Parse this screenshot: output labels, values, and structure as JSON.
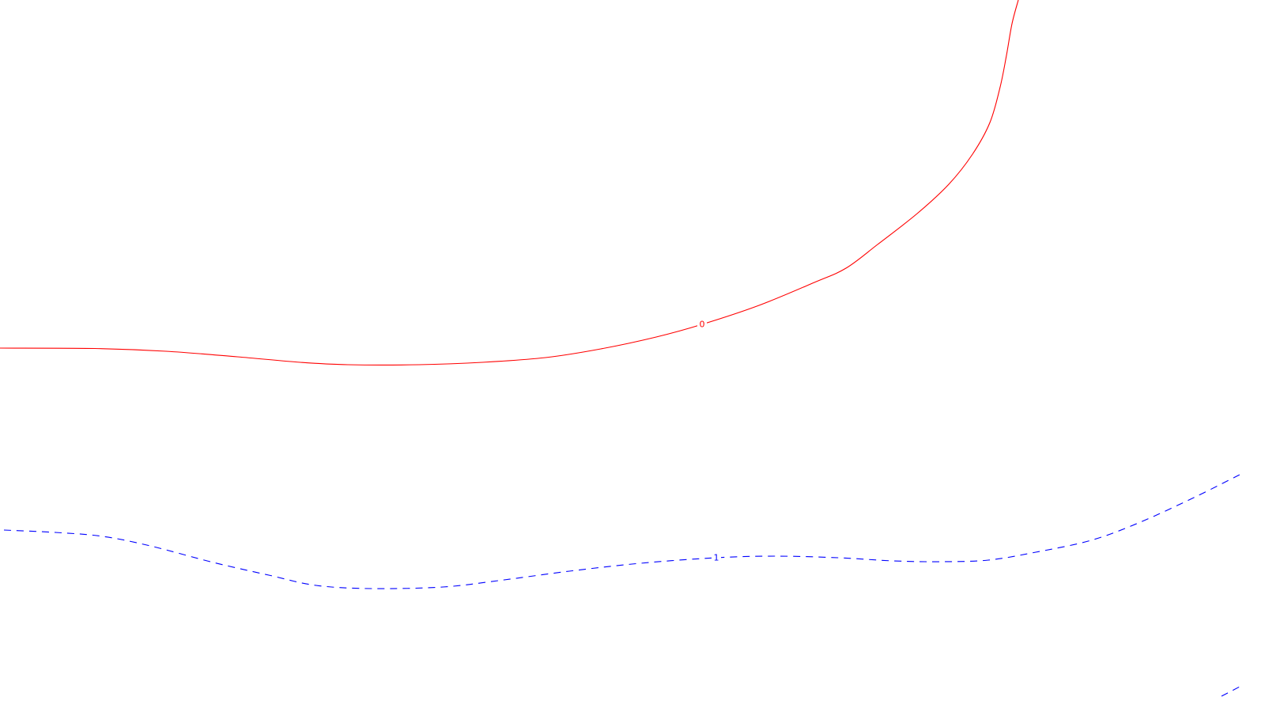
{
  "chart_data": {
    "type": "line",
    "series": [
      {
        "name": "0",
        "color": "#ff0000",
        "dash": "solid",
        "points": [
          [
            0,
            440
          ],
          [
            120,
            440.5
          ],
          [
            210,
            444
          ],
          [
            300,
            451
          ],
          [
            380,
            458
          ],
          [
            440,
            461
          ],
          [
            530,
            461
          ],
          [
            610,
            458
          ],
          [
            690,
            452
          ],
          [
            760,
            441
          ],
          [
            830,
            426
          ],
          [
            888,
            410
          ],
          [
            960,
            386
          ],
          [
            1030,
            357
          ],
          [
            1070,
            339
          ],
          [
            1110,
            309
          ],
          [
            1160,
            270
          ],
          [
            1200,
            233
          ],
          [
            1230,
            195
          ],
          [
            1252,
            155
          ],
          [
            1265,
            110
          ],
          [
            1273,
            70
          ],
          [
            1280,
            30
          ],
          [
            1288,
            0
          ]
        ]
      },
      {
        "name": "1",
        "color": "#0000ff",
        "dash": "dashed",
        "points": [
          [
            5,
            670
          ],
          [
            70,
            673
          ],
          [
            130,
            678
          ],
          [
            190,
            690
          ],
          [
            270,
            711
          ],
          [
            340,
            727
          ],
          [
            400,
            740
          ],
          [
            470,
            744
          ],
          [
            560,
            742
          ],
          [
            630,
            734
          ],
          [
            720,
            722
          ],
          [
            810,
            712
          ],
          [
            906,
            705
          ],
          [
            980,
            703
          ],
          [
            1060,
            705
          ],
          [
            1130,
            709
          ],
          [
            1190,
            710
          ],
          [
            1250,
            708
          ],
          [
            1310,
            698
          ],
          [
            1380,
            683
          ],
          [
            1440,
            661
          ],
          [
            1510,
            629
          ],
          [
            1568,
            600
          ]
        ]
      },
      {
        "name": "",
        "color": "#0000ff",
        "dash": "dashed",
        "points": [
          [
            1545,
            880
          ],
          [
            1568,
            868
          ]
        ]
      }
    ],
    "labels": [
      {
        "text": "0",
        "color": "#ff0000",
        "x": 888,
        "y": 410
      },
      {
        "text": "1",
        "color": "#0000ff",
        "x": 906,
        "y": 705
      }
    ],
    "grid": false,
    "axes_visible": false
  }
}
